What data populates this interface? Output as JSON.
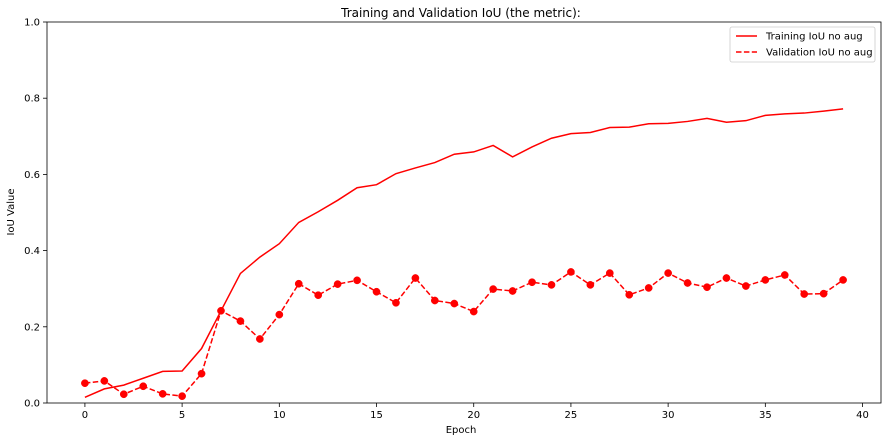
{
  "chart_data": {
    "type": "line",
    "title": "Training and Validation IoU (the metric):",
    "xlabel": "Epoch",
    "ylabel": "IoU Value",
    "xlim": [
      -1.95,
      40.95
    ],
    "ylim": [
      0,
      1.0
    ],
    "xticks": [
      0,
      5,
      10,
      15,
      20,
      25,
      30,
      35,
      40
    ],
    "yticks": [
      0.0,
      0.2,
      0.4,
      0.6,
      0.8,
      1.0
    ],
    "grid": false,
    "legend_position": "top-right",
    "x": [
      0,
      1,
      2,
      3,
      4,
      5,
      6,
      7,
      8,
      9,
      10,
      11,
      12,
      13,
      14,
      15,
      16,
      17,
      18,
      19,
      20,
      21,
      22,
      23,
      24,
      25,
      26,
      27,
      28,
      29,
      30,
      31,
      32,
      33,
      34,
      35,
      36,
      37,
      38,
      39
    ],
    "series": [
      {
        "name": "Training IoU no aug",
        "color": "#ff0000",
        "style": "solid",
        "marker": "none",
        "values": [
          0.015,
          0.037,
          0.047,
          0.065,
          0.083,
          0.084,
          0.143,
          0.242,
          0.34,
          0.383,
          0.418,
          0.474,
          0.502,
          0.532,
          0.565,
          0.573,
          0.602,
          0.617,
          0.631,
          0.653,
          0.659,
          0.676,
          0.646,
          0.672,
          0.695,
          0.707,
          0.71,
          0.723,
          0.724,
          0.733,
          0.734,
          0.739,
          0.747,
          0.737,
          0.741,
          0.755,
          0.759,
          0.761,
          0.766,
          0.772
        ]
      },
      {
        "name": "Validation IoU no aug",
        "color": "#ff0000",
        "style": "dashed",
        "marker": "circle",
        "values": [
          0.052,
          0.058,
          0.023,
          0.044,
          0.024,
          0.018,
          0.077,
          0.242,
          0.215,
          0.168,
          0.232,
          0.313,
          0.283,
          0.312,
          0.322,
          0.292,
          0.263,
          0.328,
          0.269,
          0.261,
          0.24,
          0.299,
          0.294,
          0.317,
          0.31,
          0.344,
          0.31,
          0.341,
          0.284,
          0.302,
          0.341,
          0.315,
          0.304,
          0.328,
          0.307,
          0.323,
          0.336,
          0.286,
          0.287,
          0.323
        ]
      }
    ]
  }
}
